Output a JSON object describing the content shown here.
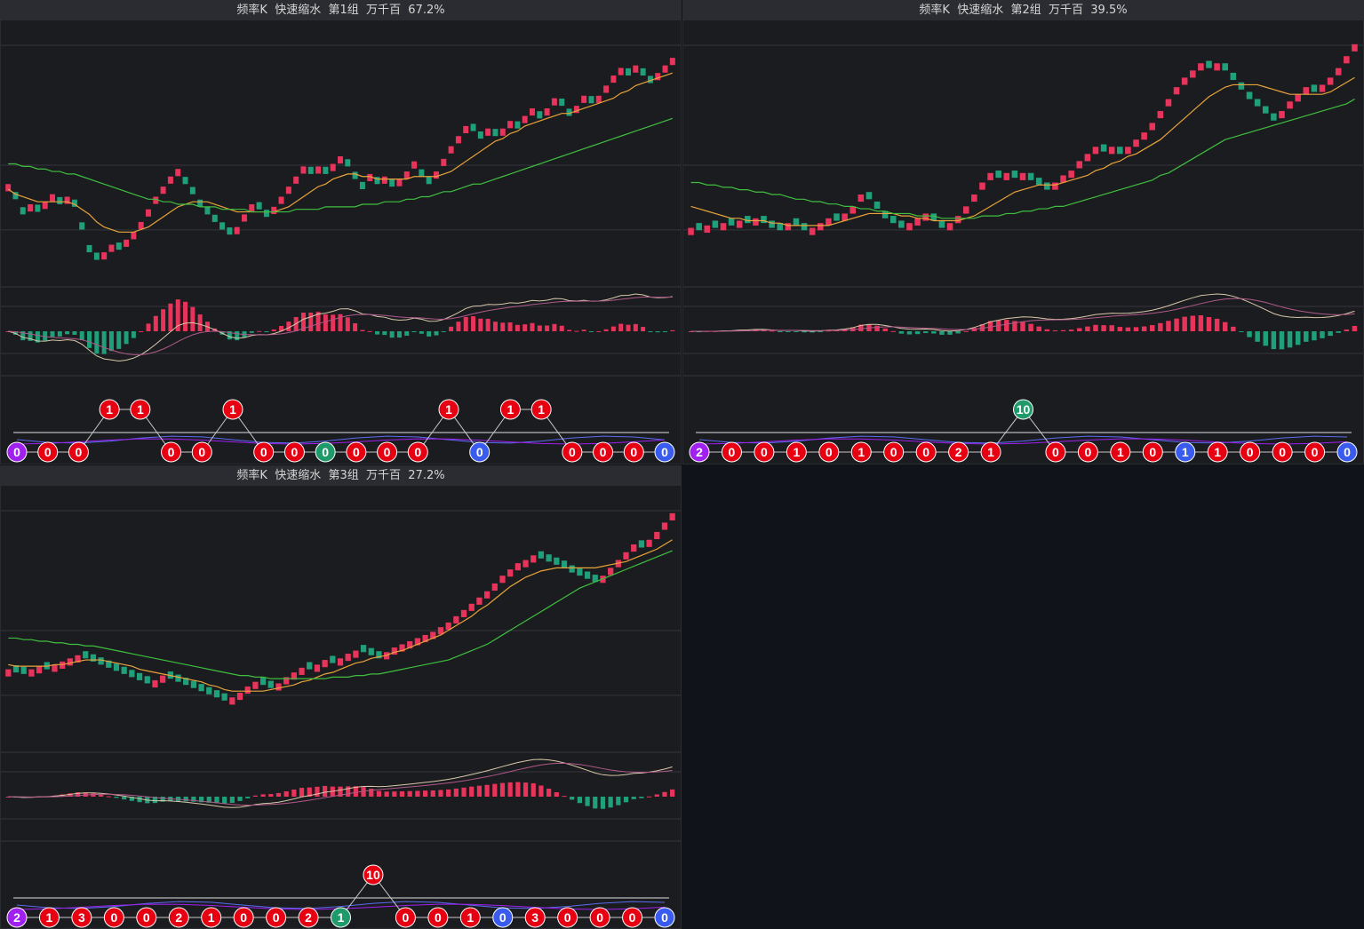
{
  "colors": {
    "up": "#e8335a",
    "down": "#1fa07a",
    "ma_short": "#e8a33a",
    "ma_long": "#3fbf3f",
    "macd_dif": "#d8c8a8",
    "macd_dea": "#b05a8a",
    "ball_red": "#e60012",
    "ball_blue": "#3a5bf0",
    "ball_green": "#1f9a6a",
    "ball_purple": "#a020f0",
    "count_line_blue": "#5a6cf0",
    "count_line_purple": "#a020f0",
    "count_line_white": "#b8b8b8"
  },
  "panels": [
    {
      "header": "频率K  快速缩水  第1组  万千百  67.2%",
      "chart_data": {
        "type": "candlestick",
        "close": [
          1.1,
          1.04,
          0.98,
          1.02,
          0.99,
          1.03,
          1.06,
          1.02,
          1.05,
          1.01,
          0.92,
          0.83,
          0.8,
          0.83,
          0.86,
          0.84,
          0.88,
          0.91,
          0.95,
          1.0,
          1.05,
          1.09,
          1.13,
          1.16,
          1.1,
          1.06,
          1.01,
          0.98,
          0.95,
          0.92,
          0.9,
          0.93,
          0.98,
          1.02,
          1.0,
          0.97,
          1.01,
          1.05,
          1.09,
          1.13,
          1.17,
          1.14,
          1.17,
          1.14,
          1.18,
          1.21,
          1.17,
          1.12,
          1.08,
          1.14,
          1.1,
          1.13,
          1.09,
          1.12,
          1.15,
          1.19,
          1.13,
          1.1,
          1.15,
          1.2,
          1.25,
          1.29,
          1.33,
          1.31,
          1.28,
          1.32,
          1.29,
          1.32,
          1.35,
          1.32,
          1.37,
          1.4,
          1.36,
          1.4,
          1.44,
          1.41,
          1.37,
          1.41,
          1.45,
          1.42,
          1.45,
          1.49,
          1.53,
          1.56,
          1.53,
          1.57,
          1.53,
          1.5,
          1.54,
          1.57,
          1.6
        ],
        "ma_short": [
          1.08,
          1.06,
          1.05,
          1.04,
          1.03,
          1.03,
          1.03,
          1.03,
          1.03,
          1.02,
          1.0,
          0.98,
          0.95,
          0.93,
          0.92,
          0.91,
          0.91,
          0.91,
          0.92,
          0.93,
          0.95,
          0.97,
          0.99,
          1.01,
          1.02,
          1.03,
          1.03,
          1.03,
          1.02,
          1.01,
          1.0,
          0.99,
          0.99,
          0.99,
          0.99,
          0.99,
          0.99,
          1.0,
          1.01,
          1.03,
          1.05,
          1.07,
          1.09,
          1.1,
          1.12,
          1.13,
          1.14,
          1.14,
          1.13,
          1.13,
          1.12,
          1.12,
          1.12,
          1.12,
          1.12,
          1.13,
          1.13,
          1.13,
          1.13,
          1.14,
          1.15,
          1.17,
          1.19,
          1.21,
          1.23,
          1.25,
          1.27,
          1.28,
          1.3,
          1.31,
          1.33,
          1.34,
          1.35,
          1.36,
          1.37,
          1.38,
          1.38,
          1.39,
          1.4,
          1.41,
          1.42,
          1.43,
          1.44,
          1.46,
          1.47,
          1.49,
          1.5,
          1.51,
          1.52,
          1.53,
          1.54
        ],
        "ma_long": [
          1.18,
          1.18,
          1.17,
          1.17,
          1.16,
          1.16,
          1.15,
          1.15,
          1.14,
          1.14,
          1.13,
          1.12,
          1.11,
          1.1,
          1.09,
          1.08,
          1.07,
          1.06,
          1.05,
          1.04,
          1.04,
          1.03,
          1.03,
          1.02,
          1.02,
          1.02,
          1.01,
          1.01,
          1.01,
          1.0,
          1.0,
          1.0,
          1.0,
          0.99,
          0.99,
          0.99,
          0.99,
          0.99,
          0.99,
          1.0,
          1.0,
          1.0,
          1.0,
          1.01,
          1.01,
          1.01,
          1.01,
          1.01,
          1.02,
          1.02,
          1.02,
          1.03,
          1.03,
          1.03,
          1.04,
          1.04,
          1.05,
          1.05,
          1.06,
          1.07,
          1.07,
          1.08,
          1.09,
          1.1,
          1.1,
          1.11,
          1.12,
          1.13,
          1.14,
          1.15,
          1.16,
          1.17,
          1.18,
          1.19,
          1.2,
          1.21,
          1.22,
          1.23,
          1.24,
          1.25,
          1.26,
          1.27,
          1.28,
          1.29,
          1.3,
          1.31,
          1.32,
          1.33,
          1.34,
          1.35,
          1.36
        ],
        "ylim": [
          0.7,
          1.72
        ],
        "macd": {
          "ylim": [
            -1,
            1
          ]
        },
        "count_labels": [
          0,
          0,
          0,
          1,
          1,
          0,
          0,
          1,
          0,
          0,
          0,
          0,
          0,
          0,
          1,
          0,
          1,
          1,
          0,
          0,
          0,
          0
        ],
        "count_colors": [
          "purple",
          "red",
          "red",
          "red",
          "red",
          "red",
          "red",
          "red",
          "red",
          "red",
          "green",
          "red",
          "red",
          "red",
          "red",
          "blue",
          "red",
          "red",
          "red",
          "red",
          "red",
          "blue"
        ],
        "count_raised": [
          false,
          false,
          false,
          true,
          true,
          false,
          false,
          true,
          false,
          false,
          false,
          false,
          false,
          false,
          true,
          false,
          true,
          true,
          false,
          false,
          false,
          false
        ],
        "hline_labels": [
          0,
          0,
          0,
          1,
          1,
          0,
          0,
          1,
          0,
          0,
          0,
          0,
          0,
          0,
          1,
          0,
          1,
          1,
          0,
          0,
          0,
          0
        ]
      }
    },
    {
      "header": "频率K  快速缩水  第2组  万千百  39.5%",
      "chart_data": {
        "type": "candlestick",
        "close": [
          0.94,
          0.93,
          0.95,
          0.94,
          0.96,
          0.95,
          0.97,
          0.96,
          0.98,
          0.96,
          0.94,
          0.93,
          0.96,
          0.95,
          0.93,
          0.94,
          0.96,
          0.98,
          0.97,
          1.0,
          1.03,
          1.08,
          1.06,
          1.02,
          0.98,
          0.96,
          0.94,
          0.96,
          0.98,
          1.0,
          0.97,
          0.94,
          0.96,
          0.99,
          1.03,
          1.08,
          1.13,
          1.17,
          1.15,
          1.17,
          1.15,
          1.17,
          1.14,
          1.12,
          1.1,
          1.13,
          1.16,
          1.18,
          1.22,
          1.25,
          1.28,
          1.26,
          1.28,
          1.25,
          1.28,
          1.31,
          1.34,
          1.38,
          1.43,
          1.48,
          1.53,
          1.57,
          1.6,
          1.63,
          1.61,
          1.63,
          1.6,
          1.56,
          1.52,
          1.48,
          1.45,
          1.42,
          1.39,
          1.43,
          1.47,
          1.5,
          1.53,
          1.51,
          1.54,
          1.57,
          1.61,
          1.66,
          1.71
        ],
        "ma_short": [
          1.03,
          1.02,
          1.01,
          1.0,
          0.99,
          0.98,
          0.98,
          0.97,
          0.97,
          0.97,
          0.96,
          0.96,
          0.95,
          0.95,
          0.95,
          0.95,
          0.95,
          0.95,
          0.96,
          0.97,
          0.98,
          0.99,
          1.0,
          1.0,
          1.0,
          1.0,
          0.99,
          0.99,
          0.98,
          0.98,
          0.97,
          0.97,
          0.97,
          0.97,
          0.98,
          0.99,
          1.01,
          1.03,
          1.05,
          1.07,
          1.09,
          1.1,
          1.11,
          1.12,
          1.12,
          1.12,
          1.13,
          1.14,
          1.15,
          1.16,
          1.18,
          1.19,
          1.21,
          1.22,
          1.24,
          1.25,
          1.27,
          1.29,
          1.31,
          1.34,
          1.37,
          1.4,
          1.43,
          1.46,
          1.49,
          1.51,
          1.53,
          1.54,
          1.54,
          1.54,
          1.54,
          1.53,
          1.52,
          1.51,
          1.5,
          1.5,
          1.5,
          1.5,
          1.5,
          1.51,
          1.53,
          1.55,
          1.57
        ],
        "ma_long": [
          1.13,
          1.13,
          1.12,
          1.12,
          1.11,
          1.11,
          1.1,
          1.1,
          1.09,
          1.09,
          1.08,
          1.08,
          1.07,
          1.06,
          1.06,
          1.05,
          1.05,
          1.04,
          1.04,
          1.03,
          1.03,
          1.02,
          1.02,
          1.01,
          1.01,
          1.0,
          1.0,
          1.0,
          0.99,
          0.99,
          0.99,
          0.98,
          0.98,
          0.98,
          0.98,
          0.98,
          0.99,
          0.99,
          0.99,
          1.0,
          1.0,
          1.01,
          1.01,
          1.02,
          1.02,
          1.03,
          1.03,
          1.04,
          1.05,
          1.06,
          1.07,
          1.08,
          1.09,
          1.1,
          1.11,
          1.12,
          1.13,
          1.14,
          1.16,
          1.17,
          1.19,
          1.21,
          1.23,
          1.25,
          1.27,
          1.29,
          1.31,
          1.32,
          1.33,
          1.34,
          1.35,
          1.36,
          1.37,
          1.38,
          1.39,
          1.4,
          1.41,
          1.42,
          1.43,
          1.44,
          1.45,
          1.46,
          1.48
        ],
        "ylim": [
          0.7,
          1.78
        ],
        "macd": {
          "ylim": [
            -1,
            1
          ]
        },
        "count_labels": [
          2,
          0,
          0,
          1,
          0,
          1,
          0,
          0,
          2,
          1,
          10,
          0,
          0,
          1,
          0,
          1,
          1,
          0,
          0,
          0,
          0
        ],
        "count_colors": [
          "purple",
          "red",
          "red",
          "red",
          "red",
          "red",
          "red",
          "red",
          "red",
          "red",
          "green",
          "red",
          "red",
          "red",
          "red",
          "blue",
          "red",
          "red",
          "red",
          "red",
          "blue"
        ],
        "count_raised": [
          false,
          false,
          false,
          false,
          false,
          false,
          false,
          false,
          false,
          false,
          true,
          false,
          false,
          false,
          false,
          false,
          false,
          false,
          false,
          false,
          false
        ]
      }
    },
    {
      "header": "频率K  快速缩水  第3组  万千百  27.2%",
      "chart_data": {
        "type": "candlestick",
        "close": [
          1.02,
          1.0,
          0.99,
          1.02,
          1.04,
          1.02,
          1.05,
          1.07,
          1.09,
          1.11,
          1.09,
          1.07,
          1.05,
          1.03,
          1.01,
          0.99,
          0.97,
          0.95,
          0.93,
          0.95,
          0.98,
          0.96,
          0.94,
          0.92,
          0.9,
          0.88,
          0.86,
          0.84,
          0.82,
          0.84,
          0.87,
          0.91,
          0.94,
          0.92,
          0.9,
          0.93,
          0.97,
          1.0,
          1.03,
          1.02,
          1.05,
          1.08,
          1.06,
          1.09,
          1.12,
          1.14,
          1.13,
          1.11,
          1.09,
          1.13,
          1.16,
          1.18,
          1.2,
          1.22,
          1.24,
          1.26,
          1.29,
          1.32,
          1.36,
          1.4,
          1.44,
          1.48,
          1.52,
          1.57,
          1.62,
          1.66,
          1.7,
          1.72,
          1.75,
          1.73,
          1.71,
          1.69,
          1.67,
          1.64,
          1.62,
          1.6,
          1.58,
          1.62,
          1.67,
          1.72,
          1.77,
          1.82,
          1.8,
          1.85,
          1.9,
          1.96,
          2.02
        ],
        "ma_short": [
          1.05,
          1.04,
          1.04,
          1.04,
          1.04,
          1.04,
          1.05,
          1.05,
          1.06,
          1.07,
          1.08,
          1.08,
          1.08,
          1.07,
          1.06,
          1.05,
          1.04,
          1.02,
          1.01,
          1.0,
          0.99,
          0.98,
          0.97,
          0.96,
          0.95,
          0.94,
          0.92,
          0.91,
          0.89,
          0.88,
          0.88,
          0.88,
          0.88,
          0.88,
          0.89,
          0.9,
          0.91,
          0.92,
          0.94,
          0.95,
          0.97,
          0.99,
          1.0,
          1.02,
          1.04,
          1.06,
          1.07,
          1.09,
          1.1,
          1.11,
          1.13,
          1.14,
          1.16,
          1.18,
          1.2,
          1.22,
          1.24,
          1.27,
          1.3,
          1.33,
          1.36,
          1.4,
          1.43,
          1.47,
          1.51,
          1.55,
          1.58,
          1.61,
          1.63,
          1.65,
          1.66,
          1.67,
          1.67,
          1.67,
          1.67,
          1.67,
          1.67,
          1.68,
          1.69,
          1.7,
          1.71,
          1.73,
          1.75,
          1.77,
          1.79,
          1.82,
          1.85
        ],
        "ma_long": [
          1.22,
          1.22,
          1.21,
          1.21,
          1.2,
          1.2,
          1.19,
          1.19,
          1.18,
          1.18,
          1.17,
          1.17,
          1.16,
          1.15,
          1.14,
          1.13,
          1.12,
          1.11,
          1.1,
          1.09,
          1.08,
          1.07,
          1.06,
          1.05,
          1.04,
          1.03,
          1.02,
          1.01,
          1.0,
          0.99,
          0.98,
          0.98,
          0.97,
          0.97,
          0.96,
          0.96,
          0.96,
          0.96,
          0.96,
          0.96,
          0.96,
          0.96,
          0.97,
          0.97,
          0.97,
          0.98,
          0.98,
          0.99,
          0.99,
          1.0,
          1.01,
          1.02,
          1.03,
          1.04,
          1.05,
          1.06,
          1.07,
          1.08,
          1.1,
          1.12,
          1.14,
          1.16,
          1.18,
          1.21,
          1.24,
          1.27,
          1.3,
          1.33,
          1.36,
          1.39,
          1.42,
          1.45,
          1.48,
          1.51,
          1.54,
          1.56,
          1.58,
          1.6,
          1.62,
          1.64,
          1.66,
          1.68,
          1.7,
          1.72,
          1.74,
          1.76,
          1.78
        ],
        "ylim": [
          0.5,
          2.15
        ],
        "macd": {
          "ylim": [
            -1,
            1
          ]
        },
        "count_labels": [
          2,
          1,
          3,
          0,
          0,
          2,
          1,
          0,
          0,
          2,
          1,
          10,
          0,
          0,
          1,
          0,
          3,
          0,
          0,
          0,
          0
        ],
        "count_colors": [
          "purple",
          "red",
          "red",
          "red",
          "red",
          "red",
          "red",
          "red",
          "red",
          "red",
          "green",
          "red",
          "red",
          "red",
          "red",
          "blue",
          "red",
          "red",
          "red",
          "red",
          "blue"
        ],
        "count_raised": [
          false,
          false,
          false,
          false,
          false,
          false,
          false,
          false,
          false,
          false,
          false,
          true,
          false,
          false,
          false,
          false,
          false,
          false,
          false,
          false,
          false
        ]
      }
    }
  ]
}
